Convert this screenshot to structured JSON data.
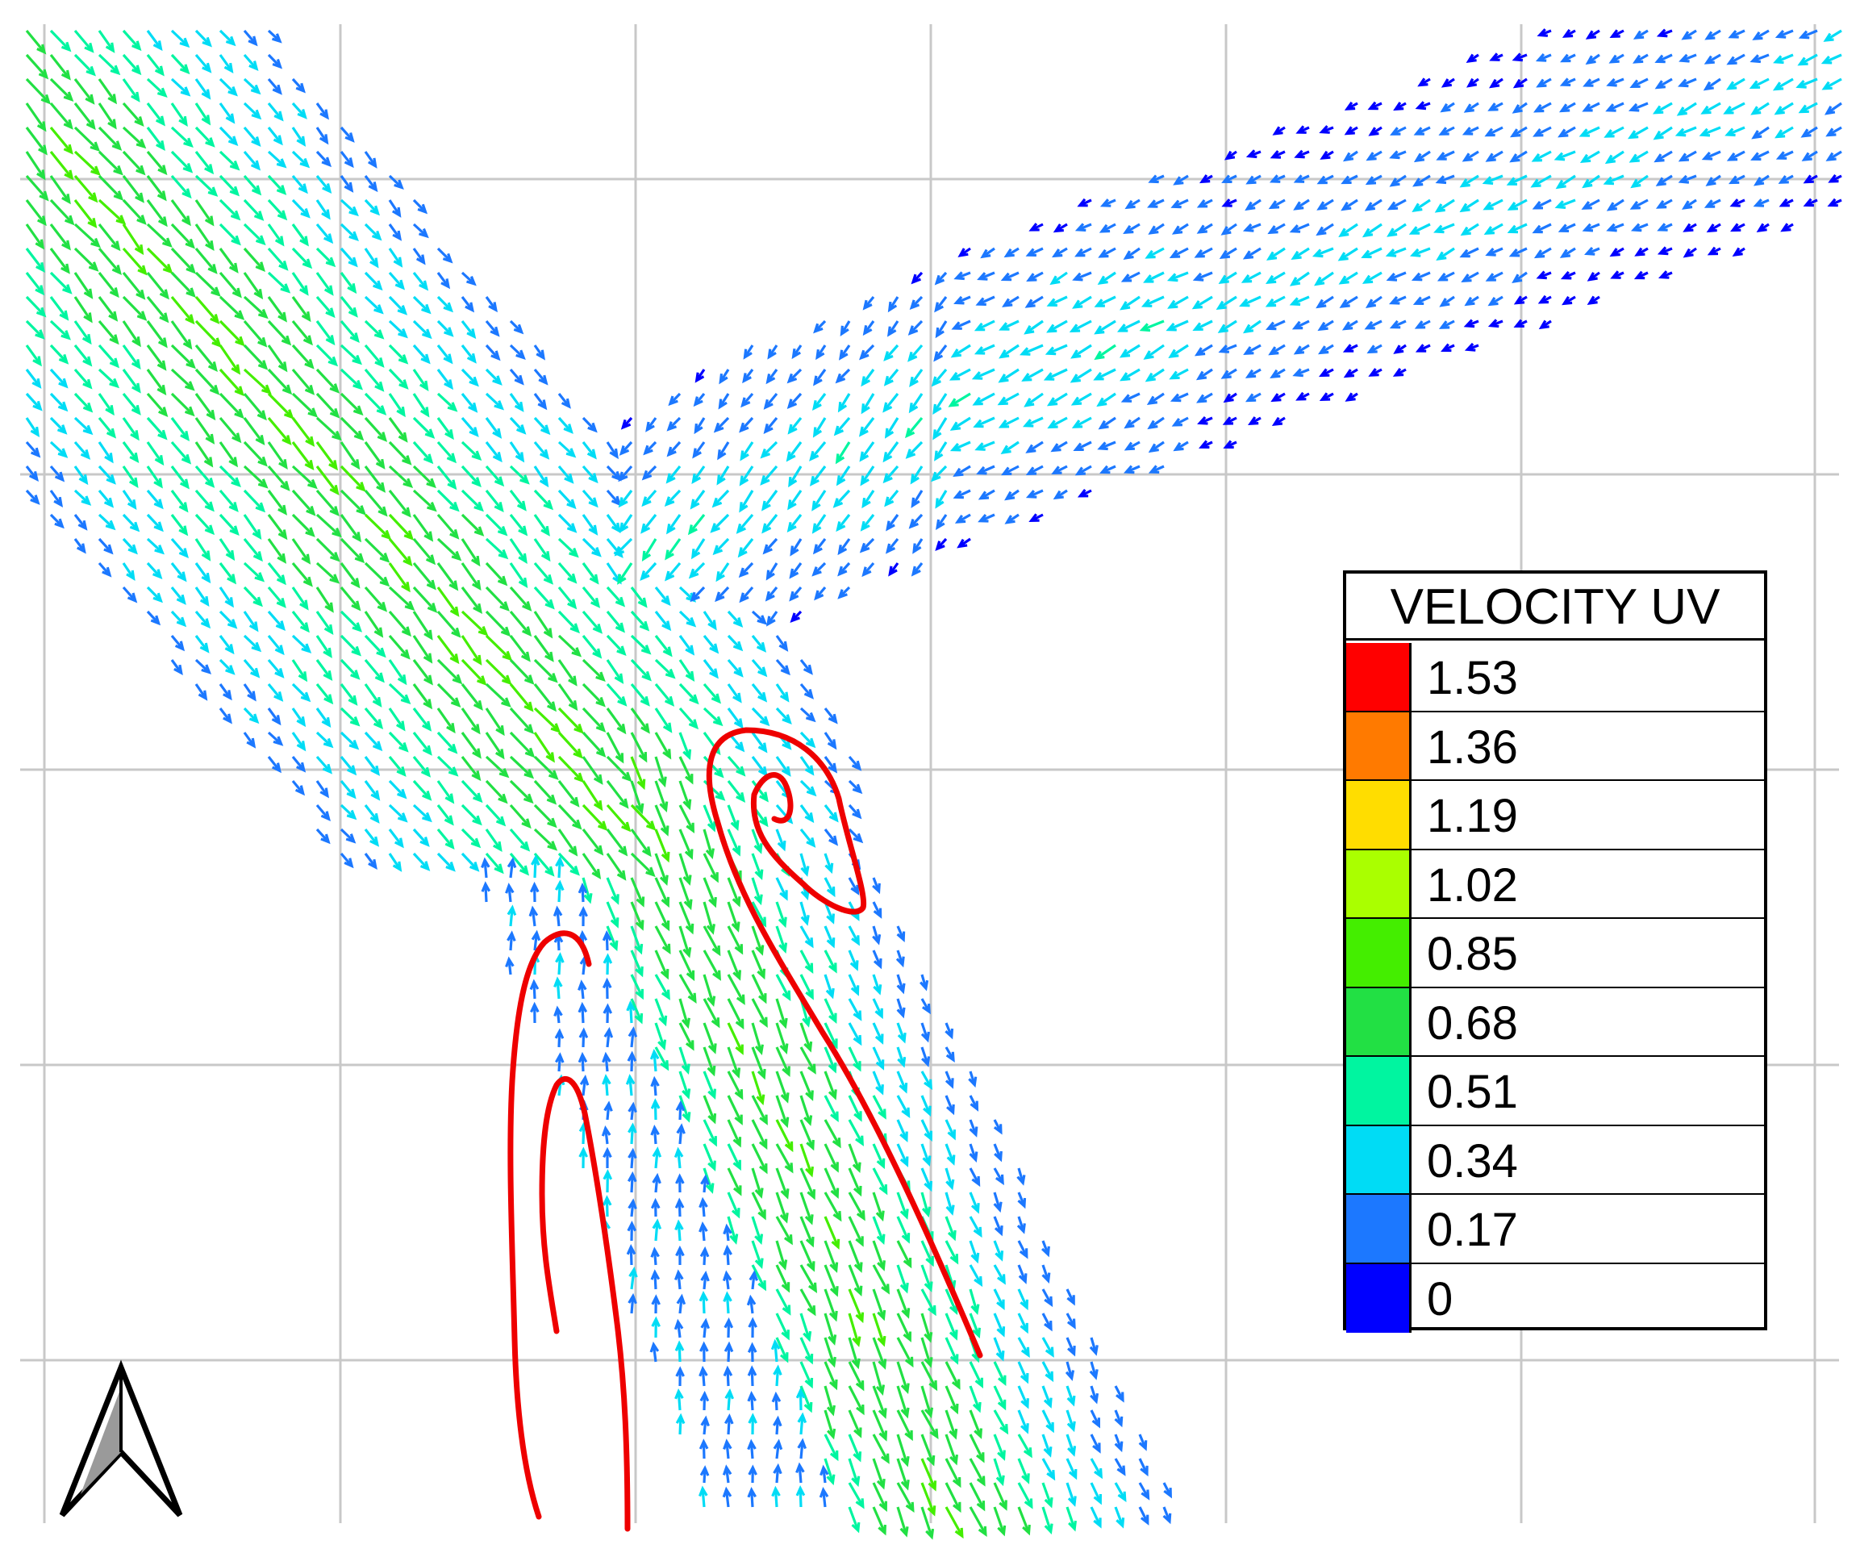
{
  "legend": {
    "title": "VELOCITY UV",
    "entries": [
      {
        "label": "1.53",
        "color": "#ff0000"
      },
      {
        "label": "1.36",
        "color": "#ff7a00"
      },
      {
        "label": "1.19",
        "color": "#ffdd00"
      },
      {
        "label": "1.02",
        "color": "#aaff00"
      },
      {
        "label": "0.85",
        "color": "#44ee00"
      },
      {
        "label": "0.68",
        "color": "#22e044"
      },
      {
        "label": "0.51",
        "color": "#00f5a0"
      },
      {
        "label": "0.34",
        "color": "#00dcf5"
      },
      {
        "label": "0.17",
        "color": "#1c78ff"
      },
      {
        "label": "0",
        "color": "#0000ff"
      }
    ]
  },
  "streamline_color": "#ee0000",
  "grid_color": "#c8c8c8",
  "north_arrow": {
    "icon": "north-arrow-icon"
  }
}
